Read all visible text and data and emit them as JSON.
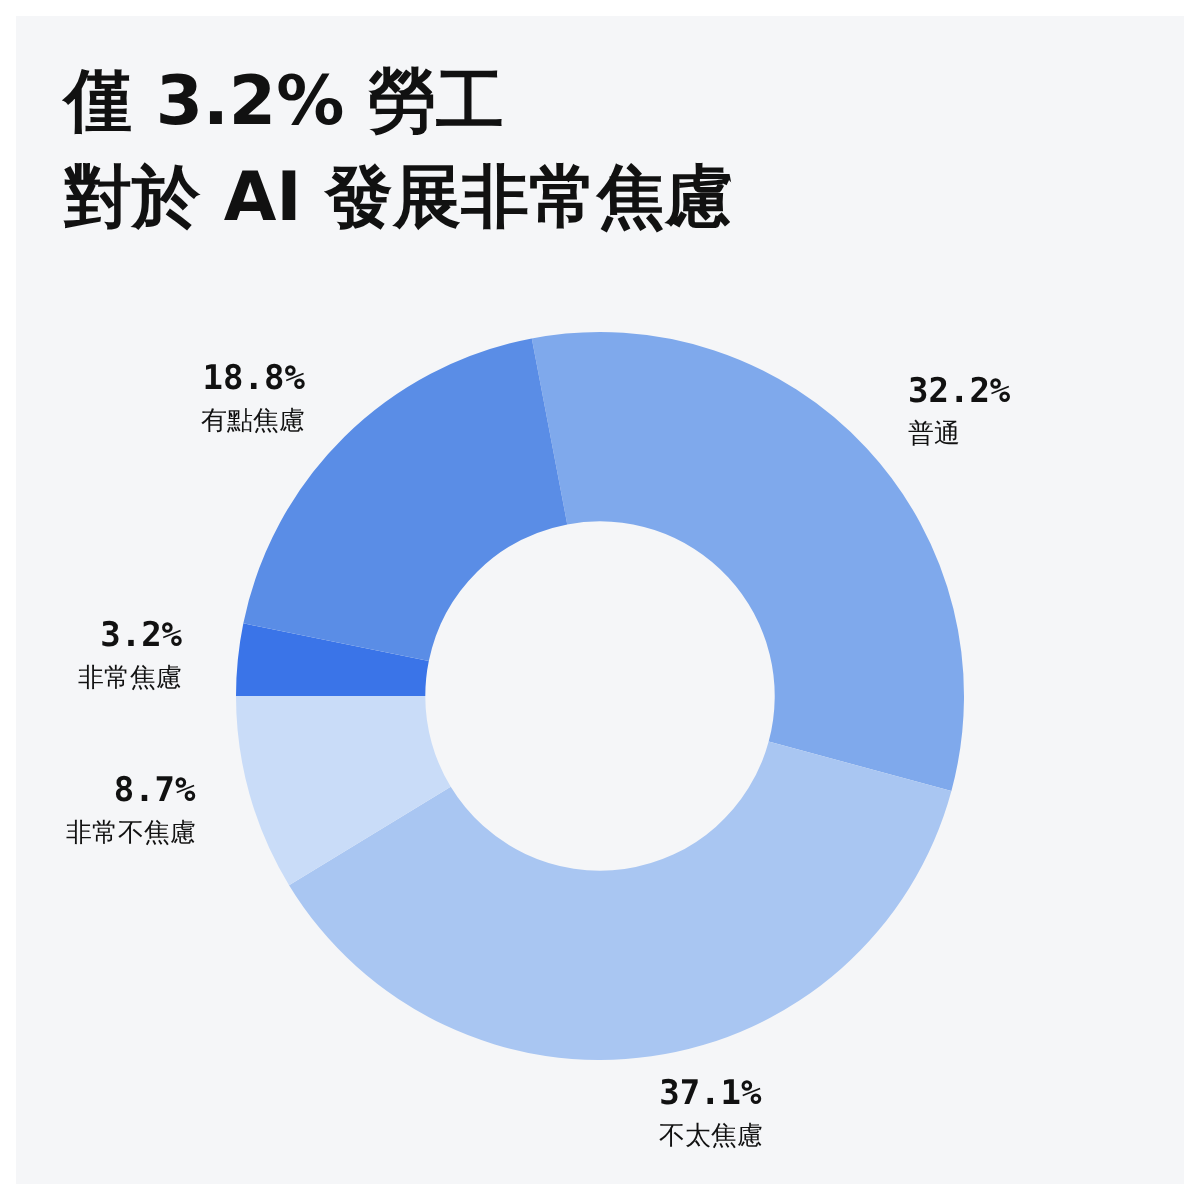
{
  "chart_data": {
    "type": "donut",
    "title": "僅 3.2% 勞工",
    "subtitle": "對於 AI 發展非常焦慮",
    "categories": [
      "普通",
      "不太焦慮",
      "非常不焦慮",
      "非常焦慮",
      "有點焦慮"
    ],
    "values": [
      32.2,
      37.1,
      8.7,
      3.2,
      18.8
    ],
    "value_labels": [
      "32.2%",
      "37.1%",
      "8.7%",
      "3.2%",
      "18.8%"
    ],
    "colors": [
      "#7fa9ec",
      "#a9c6f2",
      "#c9dcf8",
      "#3a74e8",
      "#5a8de6"
    ],
    "legend": false
  }
}
